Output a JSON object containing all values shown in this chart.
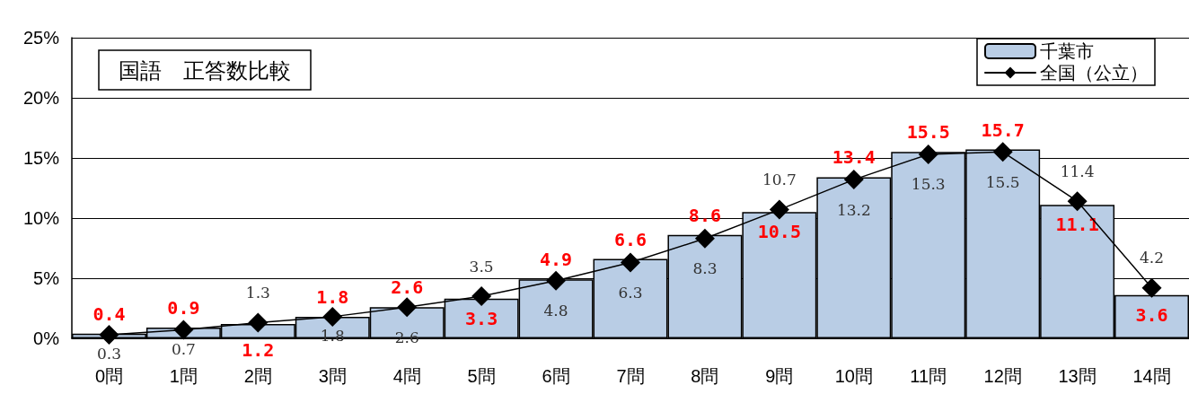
{
  "chart_data": {
    "type": "bar",
    "title": "国語　正答数比較",
    "categories": [
      "0問",
      "1問",
      "2問",
      "3問",
      "4問",
      "5問",
      "6問",
      "7問",
      "8問",
      "9問",
      "10問",
      "11問",
      "12問",
      "13問",
      "14問"
    ],
    "series": [
      {
        "name": "千葉市",
        "color": "#b9cde5",
        "values": [
          0.4,
          0.9,
          1.2,
          1.8,
          2.6,
          3.3,
          4.9,
          6.6,
          8.6,
          10.5,
          13.4,
          15.5,
          15.7,
          11.1,
          3.6
        ]
      },
      {
        "name": "全国（公立）",
        "type": "line",
        "color": "#000000",
        "values": [
          0.3,
          0.7,
          1.3,
          1.8,
          2.6,
          3.5,
          4.8,
          6.3,
          8.3,
          10.7,
          13.2,
          15.3,
          15.5,
          11.4,
          4.2
        ]
      }
    ],
    "ylim": [
      0,
      25
    ],
    "yticks": [
      {
        "value": 0,
        "label": "0%"
      },
      {
        "value": 5,
        "label": "5%"
      },
      {
        "value": 10,
        "label": "10%"
      },
      {
        "value": 15,
        "label": "15%"
      },
      {
        "value": 20,
        "label": "20%"
      },
      {
        "value": 25,
        "label": "25%"
      }
    ],
    "grid": "y",
    "legend": "top right",
    "marker": "diamond",
    "line_style": "solid",
    "data_labels": true
  }
}
